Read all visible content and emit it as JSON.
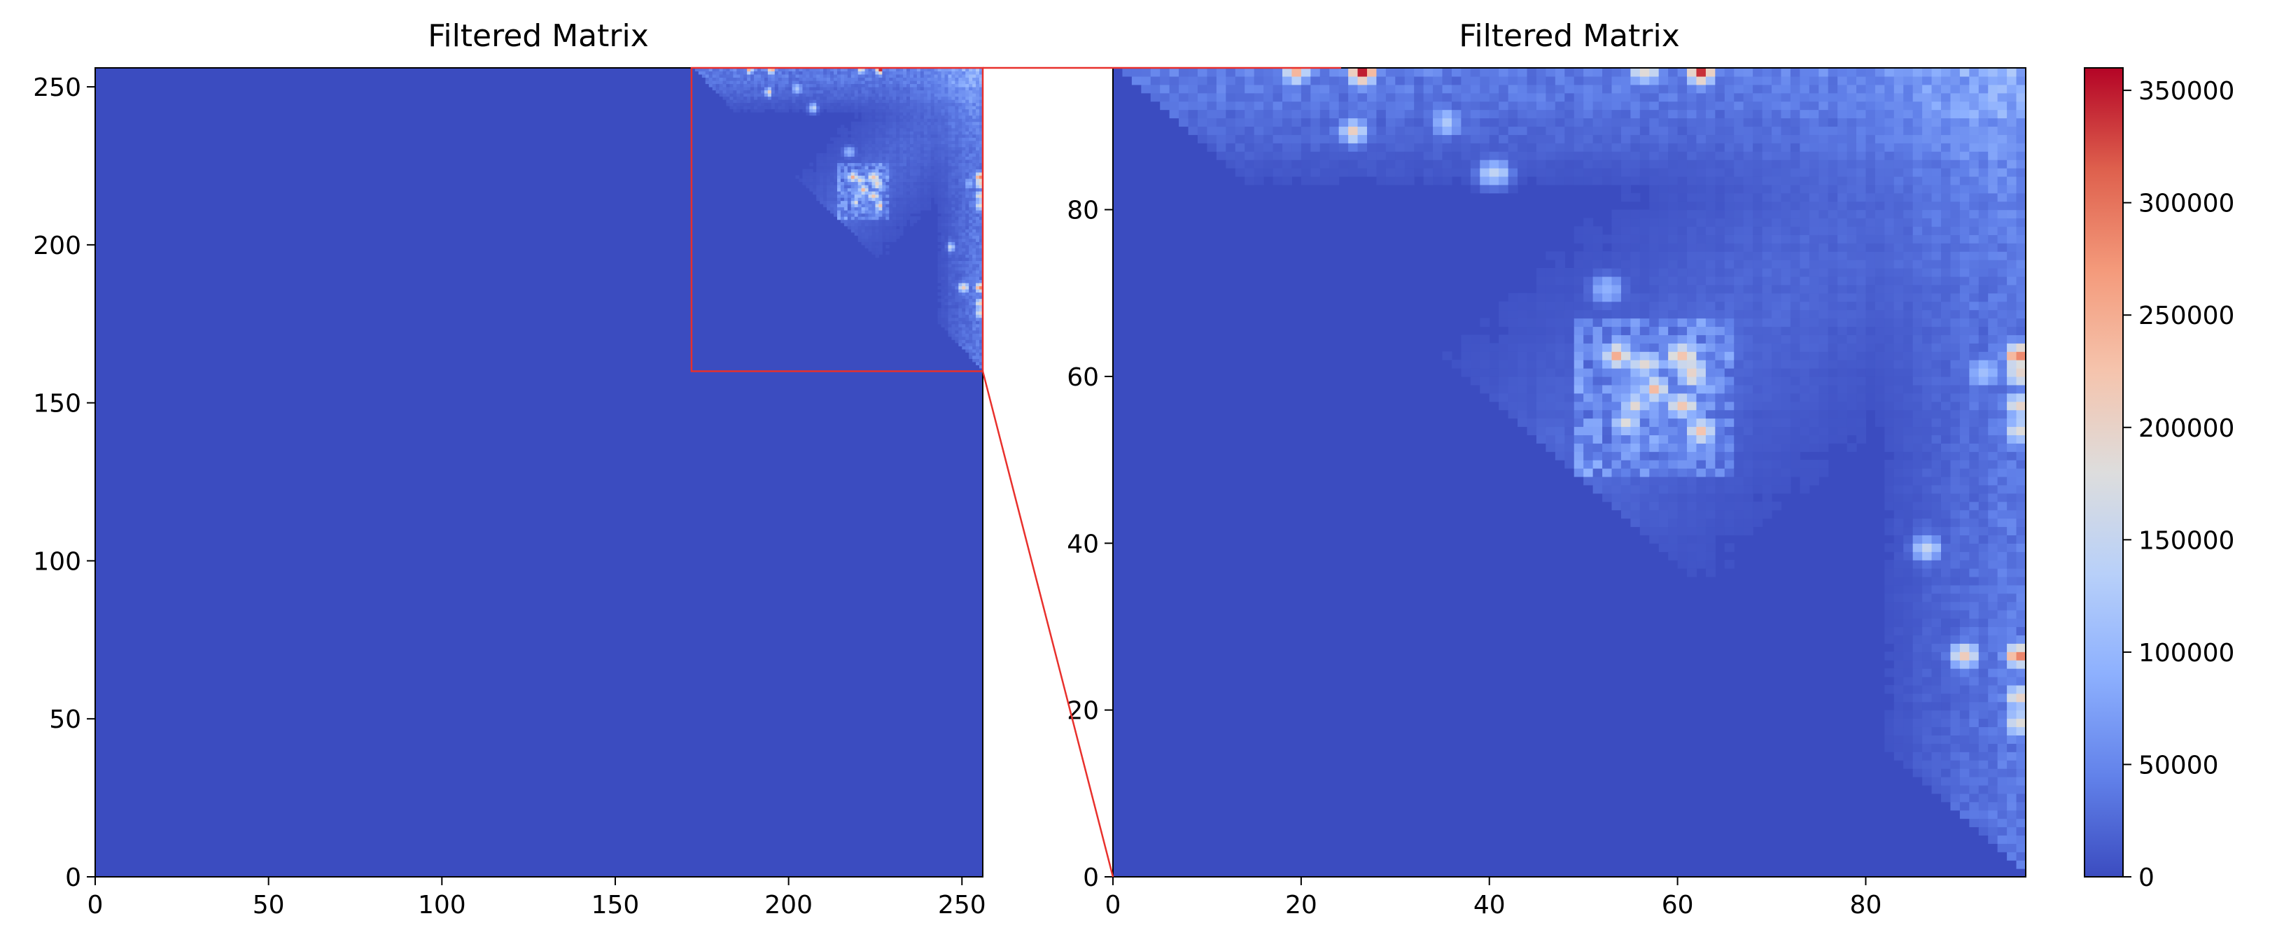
{
  "chart_data": [
    {
      "type": "heatmap",
      "title": "Filtered Matrix",
      "xlabel": "",
      "ylabel": "",
      "xlim": [
        0,
        256
      ],
      "ylim": [
        0,
        256
      ],
      "x_ticks": [
        0,
        50,
        100,
        150,
        200,
        250
      ],
      "y_ticks": [
        0,
        50,
        100,
        150,
        200,
        250
      ],
      "grid": false,
      "zoom_region": {
        "x": [
          172,
          256
        ],
        "y": [
          160,
          256
        ]
      },
      "background_value": 0
    },
    {
      "type": "heatmap",
      "title": "Filtered Matrix",
      "xlabel": "",
      "ylabel": "",
      "xlim": [
        0,
        97
      ],
      "ylim": [
        0,
        97
      ],
      "x_ticks": [
        0,
        20,
        40,
        60,
        80
      ],
      "y_ticks": [
        0,
        20,
        40,
        60,
        80
      ],
      "grid": false,
      "hotspots": [
        {
          "x": 26,
          "y": 96,
          "value": 360000
        },
        {
          "x": 62,
          "y": 96,
          "value": 340000
        },
        {
          "x": 19,
          "y": 96,
          "value": 240000
        },
        {
          "x": 56,
          "y": 96,
          "value": 230000
        },
        {
          "x": 53,
          "y": 62,
          "value": 260000
        },
        {
          "x": 56,
          "y": 61,
          "value": 250000
        },
        {
          "x": 60,
          "y": 62,
          "value": 280000
        },
        {
          "x": 61,
          "y": 60,
          "value": 270000
        },
        {
          "x": 57,
          "y": 58,
          "value": 240000
        },
        {
          "x": 60,
          "y": 56,
          "value": 260000
        },
        {
          "x": 62,
          "y": 53,
          "value": 240000
        },
        {
          "x": 55,
          "y": 56,
          "value": 200000
        },
        {
          "x": 54,
          "y": 54,
          "value": 190000
        },
        {
          "x": 96,
          "y": 62,
          "value": 360000
        },
        {
          "x": 96,
          "y": 60,
          "value": 280000
        },
        {
          "x": 96,
          "y": 56,
          "value": 260000
        },
        {
          "x": 96,
          "y": 53,
          "value": 230000
        },
        {
          "x": 96,
          "y": 26,
          "value": 350000
        },
        {
          "x": 96,
          "y": 21,
          "value": 260000
        },
        {
          "x": 96,
          "y": 18,
          "value": 240000
        },
        {
          "x": 90,
          "y": 26,
          "value": 240000
        },
        {
          "x": 86,
          "y": 39,
          "value": 170000
        },
        {
          "x": 92,
          "y": 60,
          "value": 170000
        },
        {
          "x": 40,
          "y": 84,
          "value": 190000
        },
        {
          "x": 25,
          "y": 89,
          "value": 210000
        },
        {
          "x": 35,
          "y": 90,
          "value": 160000
        },
        {
          "x": 52,
          "y": 70,
          "value": 150000
        }
      ]
    }
  ],
  "colorbar": {
    "colormap": "coolwarm",
    "vmin": 0,
    "vmax": 360000,
    "ticks": [
      0,
      50000,
      100000,
      150000,
      200000,
      250000,
      300000,
      350000
    ],
    "tick_labels": [
      "0",
      "50000",
      "100000",
      "150000",
      "200000",
      "250000",
      "300000",
      "350000"
    ]
  },
  "colors": {
    "zoom_box": "#e8302c",
    "axes": "#000000"
  }
}
